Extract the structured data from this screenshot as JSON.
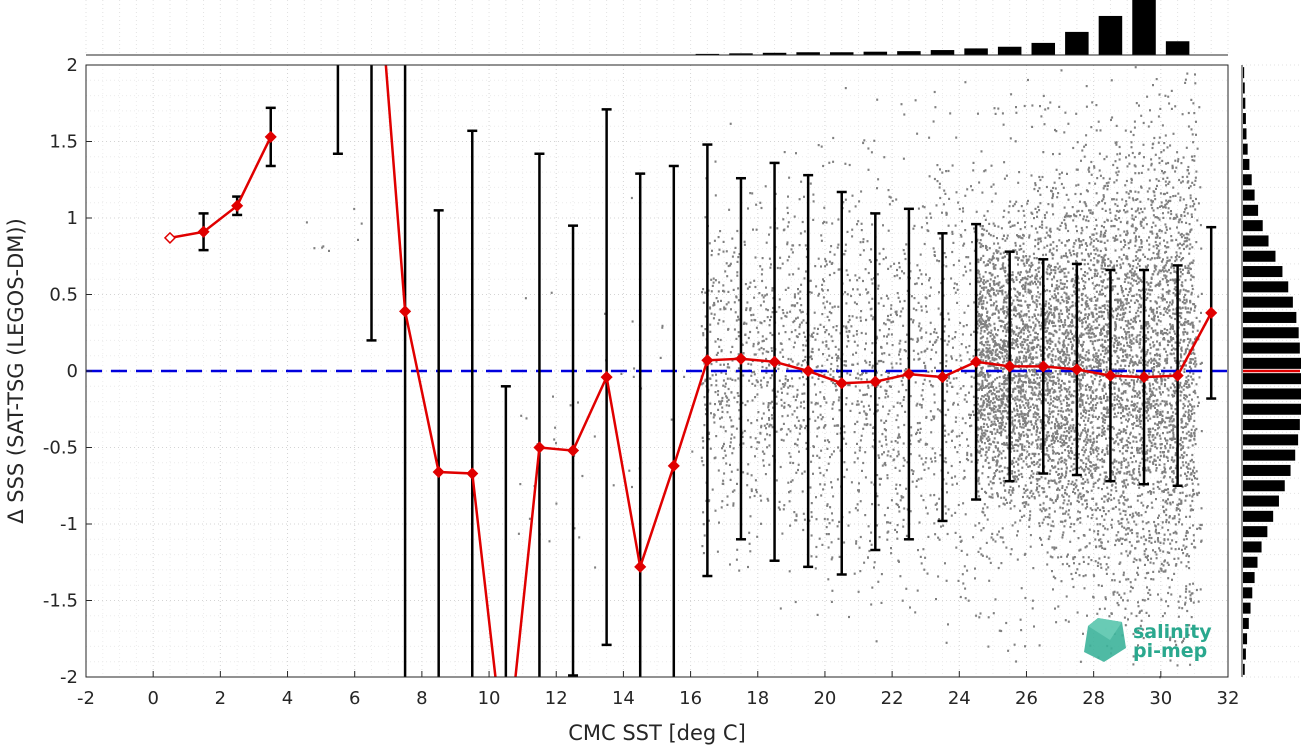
{
  "chart_data": {
    "type": "scatter",
    "xlabel": "CMC SST [deg C]",
    "ylabel": "Δ SSS (SAT-TSG (LEGOS-DM))",
    "xlim": [
      -2,
      32
    ],
    "ylim": [
      -2,
      2
    ],
    "xticks": [
      -2,
      0,
      2,
      4,
      6,
      8,
      10,
      12,
      14,
      16,
      18,
      20,
      22,
      24,
      26,
      28,
      30,
      32
    ],
    "yticks": [
      -2,
      -1.5,
      -1,
      -0.5,
      0,
      0.5,
      1,
      1.5,
      2
    ],
    "grid": true,
    "scatter_color": "#808080",
    "mean_color": "#e00000",
    "errorbar_color": "#000000",
    "zero_line": {
      "y": 0,
      "color": "#0000dd",
      "style": "dashed"
    },
    "binned_stats": {
      "x": [
        0.5,
        1.5,
        2.5,
        3.5,
        5.5,
        6.5,
        7.5,
        8.5,
        9.5,
        10.5,
        11.5,
        12.5,
        13.5,
        14.5,
        15.5,
        16.5,
        17.5,
        18.5,
        19.5,
        20.5,
        21.5,
        22.5,
        23.5,
        24.5,
        25.5,
        26.5,
        27.5,
        28.5,
        29.5,
        30.5,
        31.5
      ],
      "mean": [
        0.87,
        0.91,
        1.08,
        1.53,
        3.0,
        3.2,
        0.39,
        -0.66,
        -0.67,
        -2.6,
        -0.5,
        -0.52,
        -0.04,
        -1.28,
        -0.62,
        0.07,
        0.08,
        0.06,
        0.0,
        -0.08,
        -0.07,
        -0.02,
        -0.04,
        0.06,
        0.03,
        0.03,
        0.01,
        -0.03,
        -0.04,
        -0.03,
        0.38
      ],
      "std": [
        0.0,
        0.12,
        0.06,
        0.19,
        1.58,
        3.0,
        3.0,
        1.71,
        2.24,
        2.5,
        1.92,
        1.47,
        1.75,
        2.57,
        1.96,
        1.41,
        1.18,
        1.3,
        1.28,
        1.25,
        1.1,
        1.08,
        0.94,
        0.9,
        0.75,
        0.7,
        0.69,
        0.69,
        0.7,
        0.72,
        0.56
      ]
    },
    "scatter_clusters": [
      {
        "x": [
          16.3,
          31.2
        ],
        "y": [
          -2,
          2
        ],
        "n": 3500
      },
      {
        "x": [
          24.5,
          31.0
        ],
        "y": [
          -1.6,
          1.7
        ],
        "n": 5000
      },
      {
        "x": [
          10.8,
          16.3
        ],
        "y": [
          -2,
          1.3
        ],
        "n": 45
      },
      {
        "x": [
          4.5,
          7.2
        ],
        "y": [
          0.6,
          1.2
        ],
        "n": 8
      }
    ],
    "top_histogram": {
      "x": [
        16.5,
        17.5,
        18.5,
        19.5,
        20.5,
        21.5,
        22.5,
        23.5,
        24.5,
        25.5,
        26.5,
        27.5,
        28.5,
        29.5,
        30.5
      ],
      "counts": [
        0.02,
        0.03,
        0.04,
        0.05,
        0.05,
        0.06,
        0.07,
        0.09,
        0.12,
        0.15,
        0.22,
        0.42,
        0.71,
        1.0,
        0.25
      ]
    },
    "right_histogram": {
      "y": [
        -1.95,
        -1.85,
        -1.75,
        -1.65,
        -1.55,
        -1.45,
        -1.35,
        -1.25,
        -1.15,
        -1.05,
        -0.95,
        -0.85,
        -0.75,
        -0.65,
        -0.55,
        -0.45,
        -0.35,
        -0.25,
        -0.15,
        -0.05,
        0.05,
        0.15,
        0.25,
        0.35,
        0.45,
        0.55,
        0.65,
        0.75,
        0.85,
        0.95,
        1.05,
        1.15,
        1.25,
        1.35,
        1.45,
        1.55,
        1.65,
        1.75,
        1.85,
        1.95
      ],
      "counts": [
        0.03,
        0.05,
        0.07,
        0.1,
        0.13,
        0.16,
        0.2,
        0.25,
        0.32,
        0.42,
        0.52,
        0.62,
        0.72,
        0.82,
        0.9,
        0.95,
        0.98,
        1.0,
        1.0,
        1.0,
        1.0,
        0.98,
        0.96,
        0.92,
        0.86,
        0.78,
        0.68,
        0.56,
        0.44,
        0.34,
        0.26,
        0.2,
        0.15,
        0.11,
        0.08,
        0.06,
        0.05,
        0.04,
        0.03,
        0.02
      ],
      "mean_line_y": 0
    }
  },
  "logo": {
    "line1": "salinity",
    "line2": "pi-mep",
    "color": "#2aa88e"
  }
}
